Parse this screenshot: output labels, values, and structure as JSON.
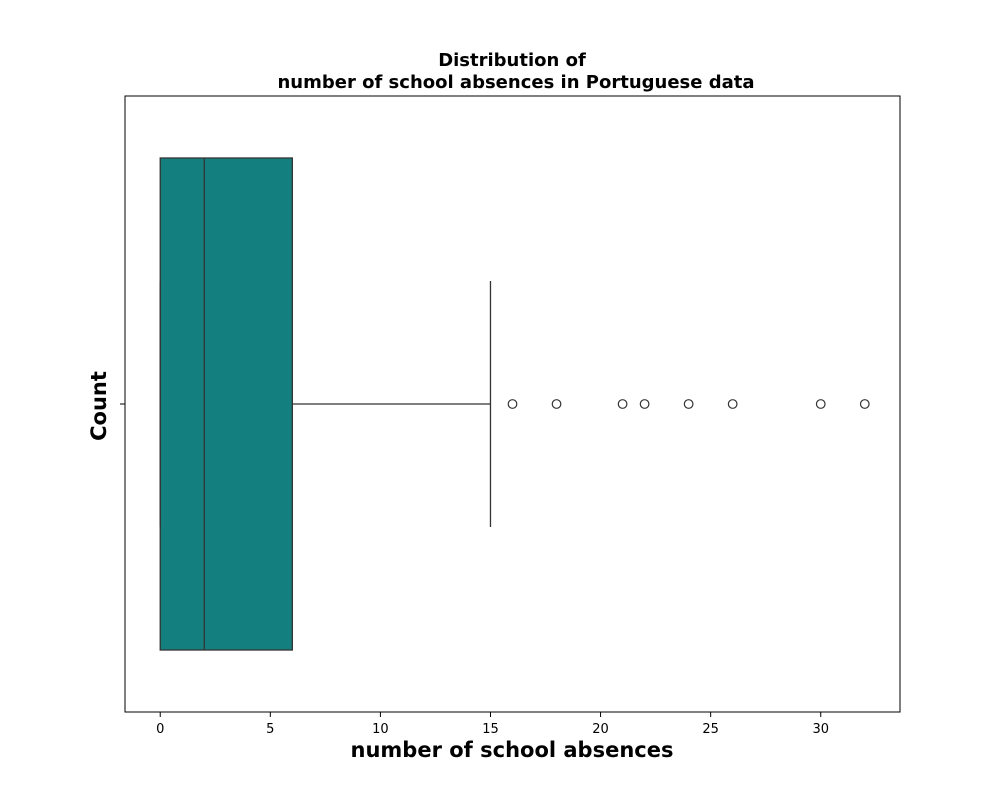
{
  "chart_data": {
    "type": "box",
    "title_lines": [
      "Distribution of",
      "number of school absences in Portuguese data"
    ],
    "xlabel": "number of school absences",
    "ylabel": "Count",
    "xlim": [
      -1.6,
      33.6
    ],
    "xticks": [
      0,
      5,
      10,
      15,
      20,
      25,
      30
    ],
    "box": {
      "whisker_low": 0,
      "q1": 0,
      "median": 2,
      "q3": 6,
      "whisker_high": 15
    },
    "outliers": [
      16,
      18,
      21,
      22,
      24,
      26,
      30,
      32
    ],
    "box_color": "#13807f",
    "line_color": "#333333",
    "grid": false,
    "orientation": "horizontal"
  }
}
